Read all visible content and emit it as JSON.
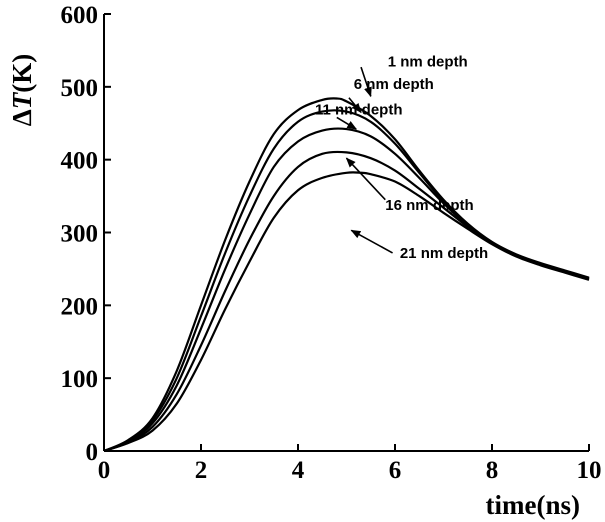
{
  "chart_data": {
    "type": "line",
    "title": "",
    "xlabel": "time(ns)",
    "ylabel_prefix": "Δ",
    "ylabel_var": "T",
    "ylabel_suffix": "(K)",
    "xlim": [
      0,
      10
    ],
    "ylim": [
      0,
      600
    ],
    "xticks": [
      0,
      2,
      4,
      6,
      8,
      10
    ],
    "yticks": [
      0,
      100,
      200,
      300,
      400,
      500,
      600
    ],
    "grid": false,
    "legend": "none",
    "series": [
      {
        "x": [
          0,
          0.5,
          1,
          1.5,
          2,
          2.5,
          3,
          3.5,
          4,
          4.5,
          4.8,
          5,
          5.5,
          6,
          6.5,
          7,
          7.5,
          8,
          8.5,
          9,
          9.5,
          10
        ],
        "y": [
          0,
          15,
          45,
          110,
          200,
          290,
          370,
          435,
          468,
          482,
          484,
          480,
          460,
          428,
          385,
          345,
          312,
          287,
          270,
          258,
          248,
          238
        ]
      },
      {
        "x": [
          0,
          0.5,
          1,
          1.5,
          2,
          2.5,
          3,
          3.5,
          4,
          4.5,
          5,
          5.5,
          6,
          6.5,
          7,
          7.5,
          8,
          8.5,
          9,
          9.5,
          10
        ],
        "y": [
          0,
          14,
          42,
          100,
          185,
          272,
          350,
          415,
          452,
          466,
          466,
          452,
          422,
          382,
          343,
          311,
          286,
          269,
          257,
          247,
          237
        ]
      },
      {
        "x": [
          0,
          0.5,
          1,
          1.5,
          2,
          2.5,
          3,
          3.5,
          4,
          4.5,
          5,
          5.5,
          6,
          6.5,
          7,
          7.5,
          8,
          8.5,
          9,
          9.5,
          10
        ],
        "y": [
          0,
          13,
          38,
          90,
          168,
          250,
          325,
          390,
          425,
          440,
          442,
          432,
          408,
          375,
          340,
          310,
          286,
          269,
          257,
          247,
          237
        ]
      },
      {
        "x": [
          0,
          0.5,
          1,
          1.5,
          2,
          2.5,
          3,
          3.5,
          4,
          4.5,
          5,
          5.5,
          6,
          6.5,
          7,
          7.5,
          8,
          8.5,
          9,
          9.5,
          10
        ],
        "y": [
          0,
          12,
          33,
          78,
          145,
          220,
          290,
          350,
          390,
          408,
          410,
          402,
          385,
          360,
          334,
          308,
          285,
          268,
          256,
          246,
          236
        ]
      },
      {
        "x": [
          0,
          0.5,
          1,
          1.5,
          2,
          2.5,
          3,
          3.5,
          4,
          4.5,
          5,
          5.3,
          5.5,
          6,
          6.5,
          7,
          7.5,
          8,
          8.5,
          9,
          9.5,
          10
        ],
        "y": [
          0,
          11,
          28,
          65,
          125,
          195,
          260,
          320,
          358,
          375,
          382,
          382,
          380,
          370,
          350,
          327,
          305,
          284,
          267,
          255,
          245,
          235
        ]
      }
    ],
    "annotations": [
      {
        "text": "1 nm depth",
        "label_x": 5.85,
        "label_y": 528,
        "arrow_from_x": 5.3,
        "arrow_from_y": 527,
        "arrow_to_x": 5.5,
        "arrow_to_y": 487
      },
      {
        "text": "6 nm depth",
        "label_x": 5.15,
        "label_y": 497,
        "arrow_from_x": 5.05,
        "arrow_from_y": 485,
        "arrow_to_x": 5.3,
        "arrow_to_y": 465
      },
      {
        "text": "11 nm depth",
        "label_x": 4.35,
        "label_y": 462,
        "arrow_from_x": 4.8,
        "arrow_from_y": 458,
        "arrow_to_x": 5.2,
        "arrow_to_y": 442
      },
      {
        "text": "16 nm depth",
        "label_x": 5.8,
        "label_y": 331,
        "arrow_from_x": 5.8,
        "arrow_from_y": 345,
        "arrow_to_x": 5.0,
        "arrow_to_y": 402
      },
      {
        "text": "21 nm depth",
        "label_x": 6.1,
        "label_y": 265,
        "arrow_from_x": 5.95,
        "arrow_from_y": 272,
        "arrow_to_x": 5.1,
        "arrow_to_y": 303
      }
    ]
  }
}
